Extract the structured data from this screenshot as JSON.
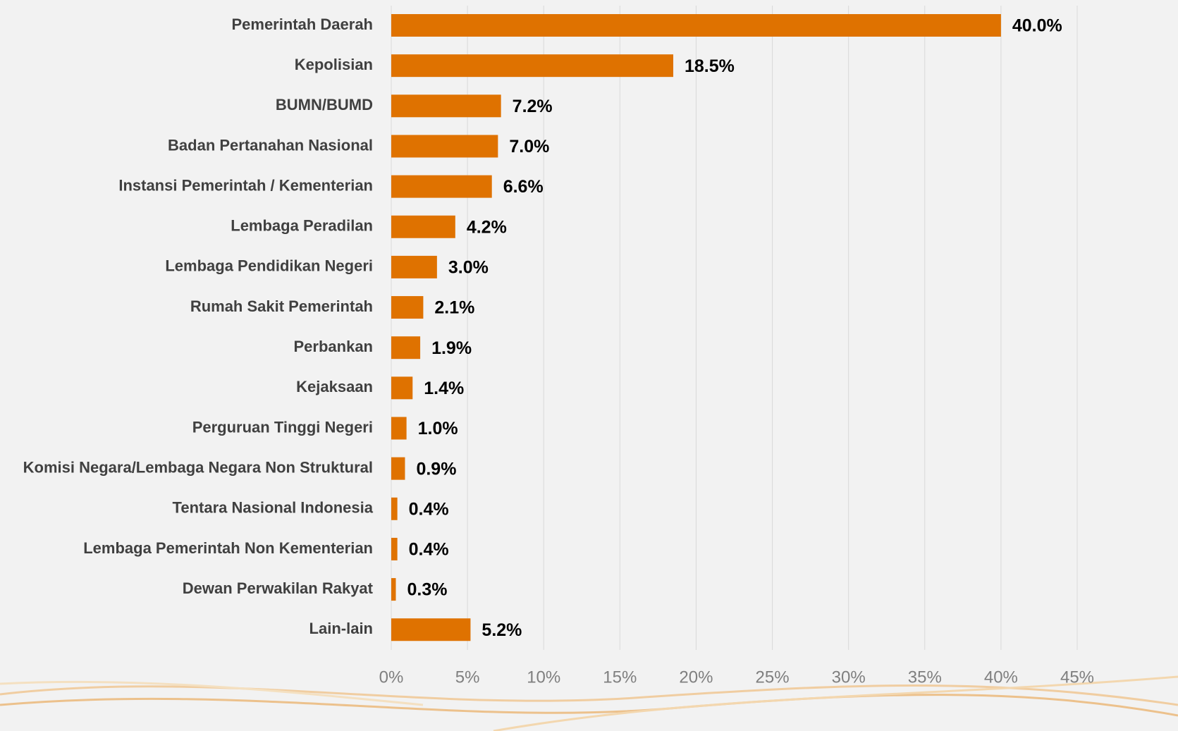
{
  "chart_data": {
    "type": "bar",
    "orientation": "horizontal",
    "categories": [
      "Pemerintah Daerah",
      "Kepolisian",
      "BUMN/BUMD",
      "Badan Pertanahan Nasional",
      "Instansi Pemerintah / Kementerian",
      "Lembaga Peradilan",
      "Lembaga Pendidikan Negeri",
      "Rumah Sakit Pemerintah",
      "Perbankan",
      "Kejaksaan",
      "Perguruan Tinggi Negeri",
      "Komisi Negara/Lembaga Negara Non Struktural",
      "Tentara Nasional Indonesia",
      "Lembaga Pemerintah Non Kementerian",
      "Dewan Perwakilan Rakyat",
      "Lain-lain"
    ],
    "values": [
      40.0,
      18.5,
      7.2,
      7.0,
      6.6,
      4.2,
      3.0,
      2.1,
      1.9,
      1.4,
      1.0,
      0.9,
      0.4,
      0.4,
      0.3,
      5.2
    ],
    "value_labels": [
      "40.0%",
      "18.5%",
      "7.2%",
      "7.0%",
      "6.6%",
      "4.2%",
      "3.0%",
      "2.1%",
      "1.9%",
      "1.4%",
      "1.0%",
      "0.9%",
      "0.4%",
      "0.4%",
      "0.3%",
      "5.2%"
    ],
    "color": "#df7200",
    "xlim": [
      0,
      45
    ],
    "xticks": [
      {
        "value": 0,
        "label": "0%"
      },
      {
        "value": 5,
        "label": "5%"
      },
      {
        "value": 10,
        "label": "10%"
      },
      {
        "value": 15,
        "label": "15%"
      },
      {
        "value": 20,
        "label": "20%"
      },
      {
        "value": 25,
        "label": "25%"
      },
      {
        "value": 30,
        "label": "30%"
      },
      {
        "value": 35,
        "label": "35%"
      },
      {
        "value": 40,
        "label": "40%"
      },
      {
        "value": 45,
        "label": "45%"
      }
    ],
    "grid": true
  }
}
